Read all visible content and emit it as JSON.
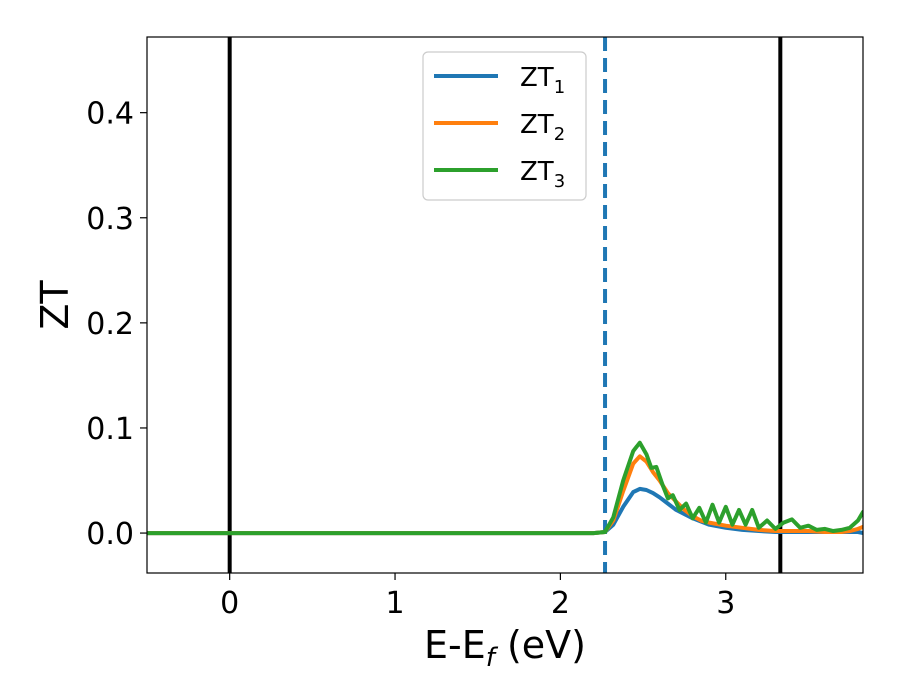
{
  "chart_data": {
    "type": "line",
    "title": "",
    "xlabel": "E-E",
    "xlabel_sub": "f",
    "xlabel_unit": " (eV)",
    "ylabel": "ZT",
    "xlim": [
      -0.5,
      3.83
    ],
    "ylim": [
      -0.038,
      0.472
    ],
    "grid": false,
    "legend_position": "upper-center",
    "x_ticks": [
      0,
      1,
      2,
      3
    ],
    "x_tick_labels": [
      "0",
      "1",
      "2",
      "3"
    ],
    "y_ticks": [
      0.0,
      0.1,
      0.2,
      0.3,
      0.4
    ],
    "y_tick_labels": [
      "0.0",
      "0.1",
      "0.2",
      "0.3",
      "0.4"
    ],
    "vlines": [
      {
        "x": 0.0,
        "style": "solid",
        "color": "#000000"
      },
      {
        "x": 2.27,
        "style": "dashed",
        "color": "#1f77b4"
      },
      {
        "x": 3.33,
        "style": "solid",
        "color": "#000000"
      }
    ],
    "series": [
      {
        "name": "ZT",
        "name_sub": "1",
        "color": "#1f77b4",
        "x": [
          -0.5,
          2.0,
          2.2,
          2.27,
          2.32,
          2.38,
          2.44,
          2.48,
          2.52,
          2.56,
          2.6,
          2.65,
          2.7,
          2.8,
          2.9,
          3.0,
          3.1,
          3.2,
          3.3,
          3.4,
          3.5,
          3.6,
          3.7,
          3.75,
          3.8,
          3.83
        ],
        "y": [
          0.0,
          0.0,
          0.0,
          0.001,
          0.008,
          0.025,
          0.039,
          0.042,
          0.041,
          0.038,
          0.034,
          0.028,
          0.022,
          0.014,
          0.008,
          0.005,
          0.003,
          0.002,
          0.001,
          0.001,
          0.001,
          0.001,
          0.001,
          0.001,
          0.001,
          0.0
        ]
      },
      {
        "name": "ZT",
        "name_sub": "2",
        "color": "#ff7f0e",
        "x": [
          -0.5,
          2.0,
          2.2,
          2.27,
          2.32,
          2.38,
          2.44,
          2.48,
          2.52,
          2.56,
          2.6,
          2.65,
          2.7,
          2.75,
          2.8,
          2.85,
          2.9,
          3.0,
          3.1,
          3.2,
          3.3,
          3.4,
          3.5,
          3.6,
          3.7,
          3.75,
          3.8,
          3.83
        ],
        "y": [
          0.0,
          0.0,
          0.0,
          0.001,
          0.012,
          0.04,
          0.066,
          0.073,
          0.068,
          0.058,
          0.05,
          0.038,
          0.03,
          0.022,
          0.016,
          0.012,
          0.01,
          0.007,
          0.005,
          0.003,
          0.002,
          0.002,
          0.002,
          0.001,
          0.001,
          0.002,
          0.004,
          0.006
        ]
      },
      {
        "name": "ZT",
        "name_sub": "3",
        "color": "#2ca02c",
        "x": [
          -0.5,
          2.0,
          2.2,
          2.27,
          2.32,
          2.38,
          2.44,
          2.48,
          2.52,
          2.55,
          2.58,
          2.62,
          2.65,
          2.68,
          2.72,
          2.76,
          2.8,
          2.84,
          2.88,
          2.92,
          2.96,
          3.0,
          3.04,
          3.08,
          3.12,
          3.16,
          3.2,
          3.25,
          3.3,
          3.35,
          3.4,
          3.45,
          3.5,
          3.55,
          3.6,
          3.65,
          3.7,
          3.75,
          3.8,
          3.83
        ],
        "y": [
          0.0,
          0.0,
          0.0,
          0.001,
          0.015,
          0.05,
          0.078,
          0.086,
          0.075,
          0.062,
          0.063,
          0.045,
          0.033,
          0.036,
          0.022,
          0.028,
          0.014,
          0.024,
          0.01,
          0.027,
          0.01,
          0.025,
          0.008,
          0.022,
          0.008,
          0.022,
          0.005,
          0.012,
          0.004,
          0.01,
          0.013,
          0.005,
          0.007,
          0.003,
          0.004,
          0.002,
          0.003,
          0.005,
          0.012,
          0.02
        ]
      }
    ]
  }
}
